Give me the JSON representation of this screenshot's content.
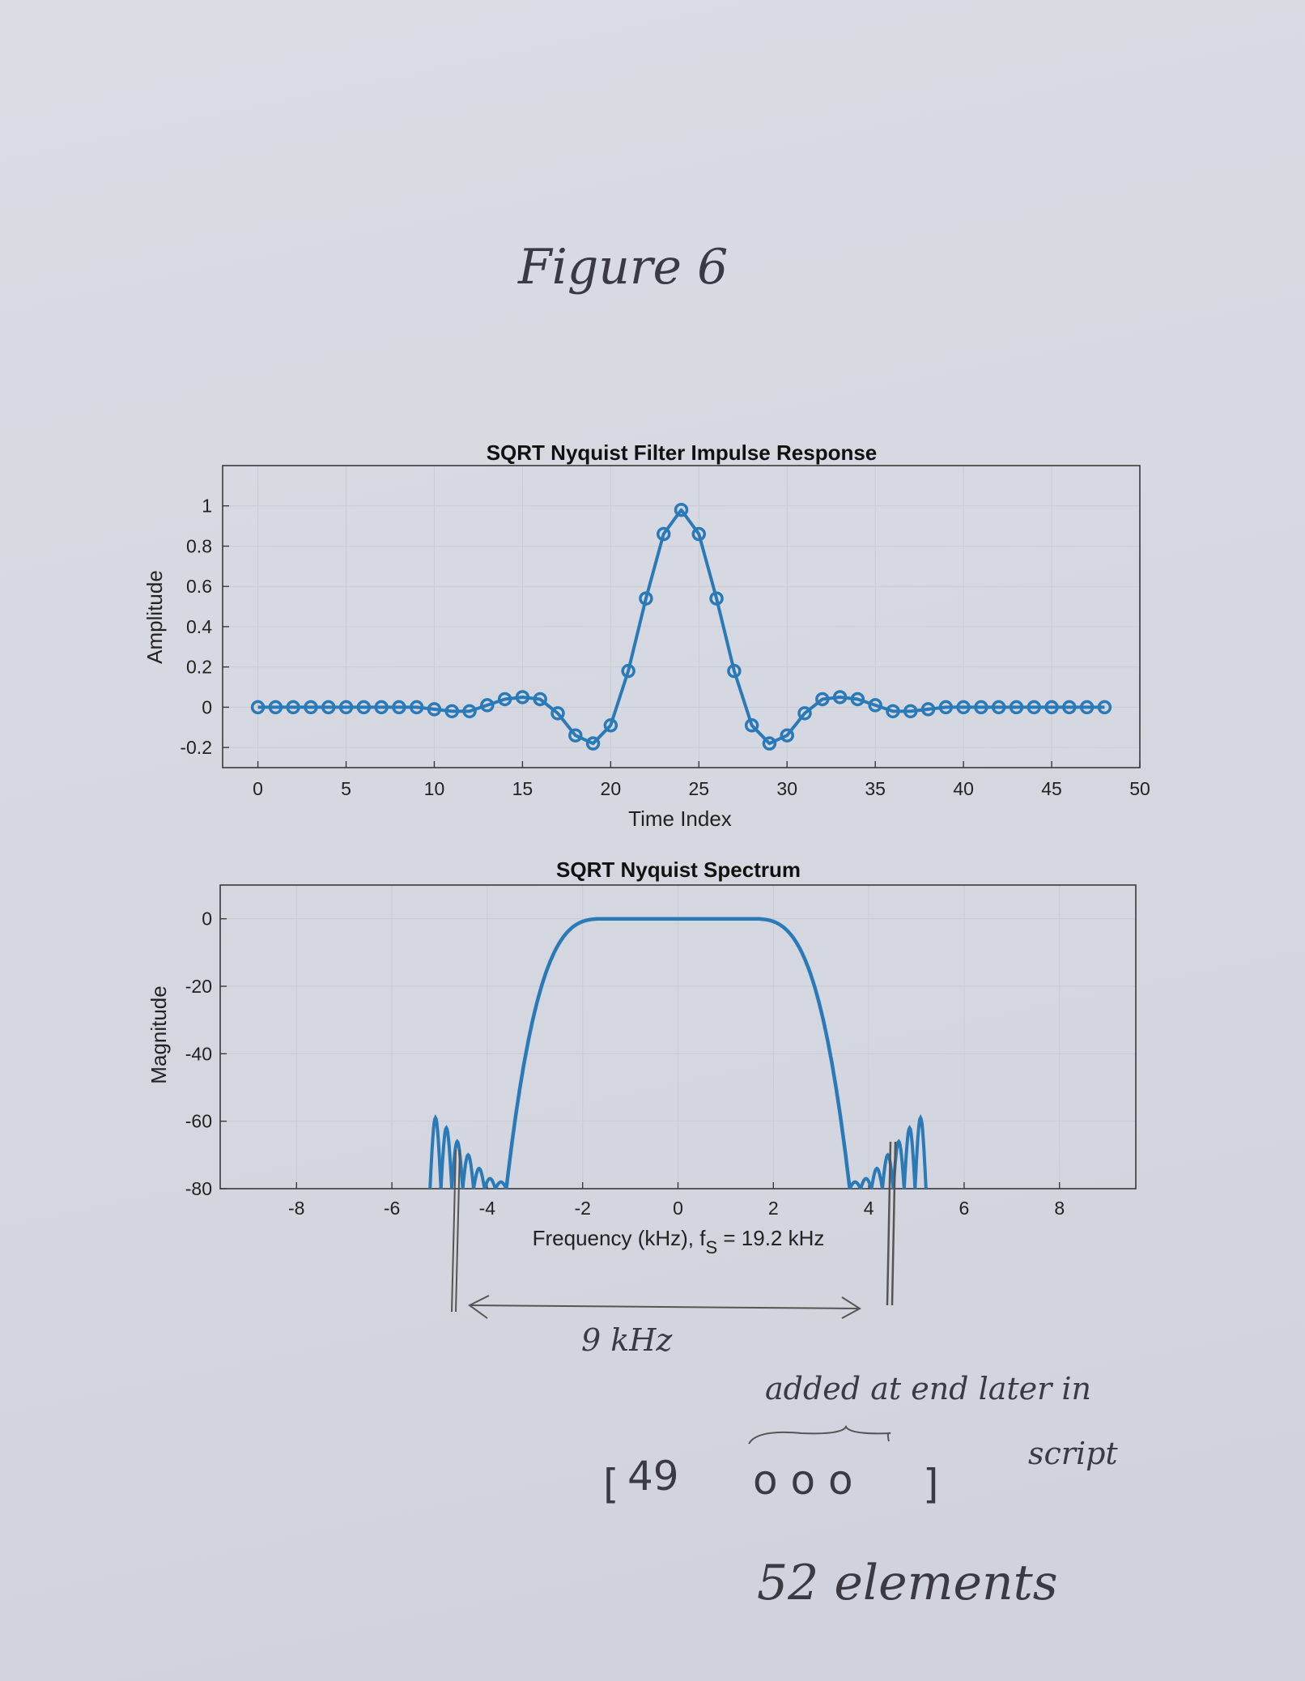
{
  "figure_title": "Figure 6",
  "colors": {
    "line": "#2a7ab8",
    "grid": "#c9cbd2",
    "frame": "#3a3a3a",
    "ink": "#3a3a44"
  },
  "chart_data": [
    {
      "type": "line",
      "title": "SQRT Nyquist Filter Impulse Response",
      "xlabel": "Time Index",
      "ylabel": "Amplitude",
      "xlim": [
        -2,
        50
      ],
      "ylim": [
        -0.3,
        1.2
      ],
      "xticks": [
        0,
        5,
        10,
        15,
        20,
        25,
        30,
        35,
        40,
        45,
        50
      ],
      "yticks": [
        -0.2,
        0,
        0.2,
        0.4,
        0.6,
        0.8,
        1
      ],
      "ytick_labels": [
        "-0.2",
        "0",
        "0.2",
        "0.4",
        "0.6",
        "0.8",
        "1"
      ],
      "grid": true,
      "markers": "circle",
      "series": [
        {
          "x": [
            0,
            1,
            2,
            3,
            4,
            5,
            6,
            7,
            8,
            9,
            10,
            11,
            12,
            13,
            14,
            15,
            16,
            17,
            18,
            19,
            20,
            21,
            22,
            23,
            24,
            25,
            26,
            27,
            28,
            29,
            30,
            31,
            32,
            33,
            34,
            35,
            36,
            37,
            38,
            39,
            40,
            41,
            42,
            43,
            44,
            45,
            46,
            47,
            48
          ],
          "values": [
            0.0,
            0.0,
            0.0,
            0.0,
            0.0,
            0.0,
            0.0,
            0.0,
            0.0,
            0.0,
            -0.01,
            -0.02,
            -0.02,
            0.01,
            0.04,
            0.05,
            0.04,
            -0.03,
            -0.14,
            -0.18,
            -0.09,
            0.18,
            0.54,
            0.86,
            0.98,
            0.86,
            0.54,
            0.18,
            -0.09,
            -0.18,
            -0.14,
            -0.03,
            0.04,
            0.05,
            0.04,
            0.01,
            -0.02,
            -0.02,
            -0.01,
            0.0,
            0.0,
            0.0,
            0.0,
            0.0,
            0.0,
            0.0,
            0.0,
            0.0,
            0.0
          ]
        }
      ]
    },
    {
      "type": "line",
      "title": "SQRT Nyquist Spectrum",
      "xlabel_main": "Frequency (kHz), f",
      "xlabel_sub": "S",
      "xlabel_tail": " = 19.2 kHz",
      "ylabel": "Magnitude",
      "xlim": [
        -9.6,
        9.6
      ],
      "ylim": [
        -80,
        10
      ],
      "xticks": [
        -8,
        -6,
        -4,
        -2,
        0,
        2,
        4,
        6,
        8
      ],
      "yticks": [
        -80,
        -60,
        -40,
        -20,
        0
      ],
      "grid": true,
      "passband_db": 0,
      "mainlobe_edge_khz": [
        -3.6,
        3.6
      ],
      "sidelobes_khz": [
        -5.2,
        -3.6,
        3.6,
        5.2
      ],
      "sidelobe_peaks_db": [
        -78,
        -77,
        -74,
        -70,
        -66,
        -62,
        -59
      ]
    }
  ],
  "annotations": {
    "bandwidth": "9 kHz",
    "note_added": "added at end later in",
    "note_script": "script",
    "bracket_open": "[",
    "count_value": "49",
    "zeros": "o o o",
    "bracket_close": "]",
    "elements": "52 elements"
  }
}
